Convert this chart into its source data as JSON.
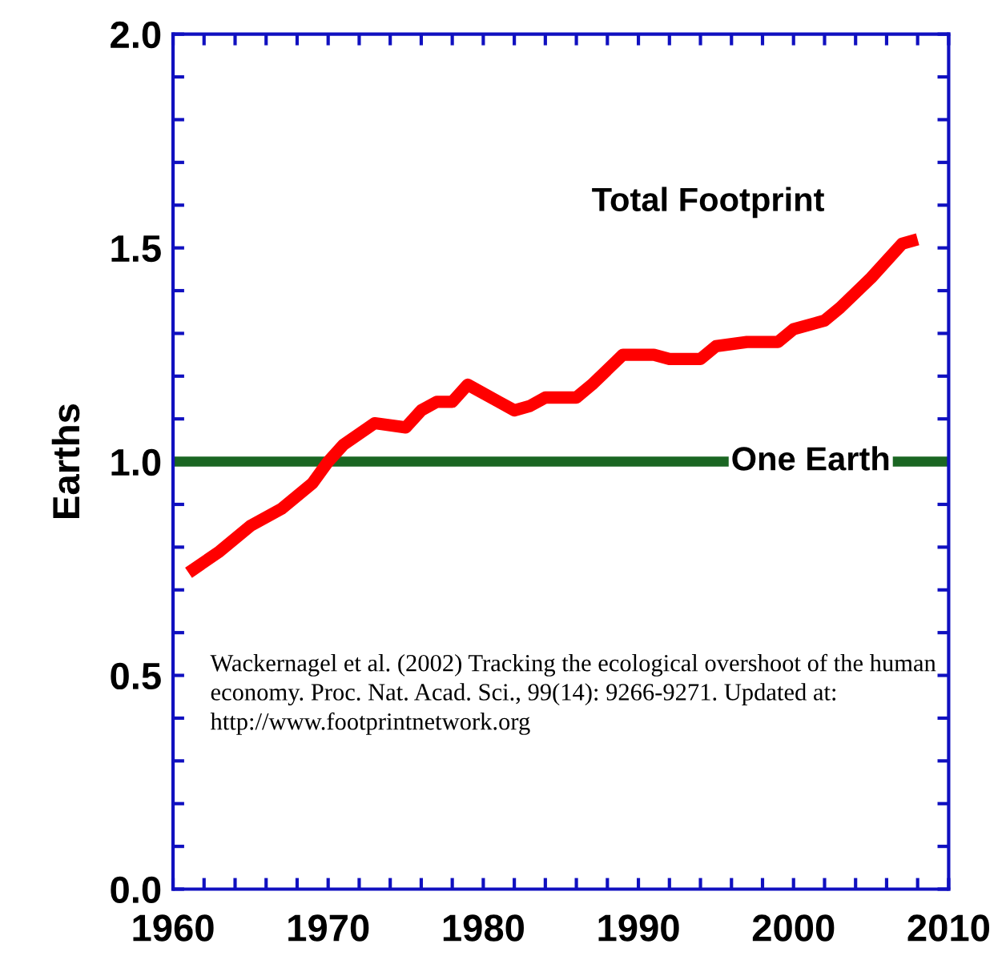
{
  "chart_data": {
    "type": "line",
    "ylabel": "Earths",
    "x": [
      1961,
      1963,
      1965,
      1967,
      1969,
      1970,
      1971,
      1973,
      1975,
      1976,
      1977,
      1978,
      1979,
      1981,
      1982,
      1983,
      1984,
      1986,
      1987,
      1989,
      1991,
      1992,
      1994,
      1995,
      1997,
      1998,
      1999,
      2000,
      2002,
      2003,
      2005,
      2007,
      2008
    ],
    "series": [
      {
        "name": "Total Footprint",
        "color": "#ff0000",
        "values": [
          0.74,
          0.79,
          0.85,
          0.89,
          0.95,
          1.0,
          1.04,
          1.09,
          1.08,
          1.12,
          1.14,
          1.14,
          1.18,
          1.14,
          1.12,
          1.13,
          1.15,
          1.15,
          1.18,
          1.25,
          1.25,
          1.24,
          1.24,
          1.27,
          1.28,
          1.28,
          1.28,
          1.31,
          1.33,
          1.36,
          1.43,
          1.51,
          1.52
        ]
      }
    ],
    "xlim": [
      1960,
      2010
    ],
    "xticks": [
      1960,
      {
        "value": 1962,
        "label": null
      },
      {
        "value": 1964,
        "label": null
      },
      {
        "value": 1966,
        "label": null
      },
      {
        "value": 1968,
        "label": null
      },
      1970,
      {
        "value": 1972,
        "label": null
      },
      {
        "value": 1974,
        "label": null
      },
      {
        "value": 1976,
        "label": null
      },
      {
        "value": 1978,
        "label": null
      },
      1980,
      {
        "value": 1982,
        "label": null
      },
      {
        "value": 1984,
        "label": null
      },
      {
        "value": 1986,
        "label": null
      },
      {
        "value": 1988,
        "label": null
      },
      1990,
      {
        "value": 1992,
        "label": null
      },
      {
        "value": 1994,
        "label": null
      },
      {
        "value": 1996,
        "label": null
      },
      {
        "value": 1998,
        "label": null
      },
      2000,
      {
        "value": 2002,
        "label": null
      },
      {
        "value": 2004,
        "label": null
      },
      {
        "value": 2006,
        "label": null
      },
      {
        "value": 2008,
        "label": null
      },
      2010
    ],
    "ylim": [
      0,
      2
    ],
    "yticks": [
      {
        "value": 0,
        "label": "0.0"
      },
      {
        "value": 0.1,
        "label": null
      },
      {
        "value": 0.2,
        "label": null
      },
      {
        "value": 0.3,
        "label": null
      },
      {
        "value": 0.4,
        "label": null
      },
      {
        "value": 0.5,
        "label": "0.5"
      },
      {
        "value": 0.6,
        "label": null
      },
      {
        "value": 0.7,
        "label": null
      },
      {
        "value": 0.8,
        "label": null
      },
      {
        "value": 0.9,
        "label": null
      },
      {
        "value": 1,
        "label": "1.0"
      },
      {
        "value": 1.1,
        "label": null
      },
      {
        "value": 1.2,
        "label": null
      },
      {
        "value": 1.3,
        "label": null
      },
      {
        "value": 1.4,
        "label": null
      },
      {
        "value": 1.5,
        "label": "1.5"
      },
      {
        "value": 1.6,
        "label": null
      },
      {
        "value": 1.7,
        "label": null
      },
      {
        "value": 1.8,
        "label": null
      },
      {
        "value": 1.9,
        "label": null
      },
      {
        "value": 2,
        "label": "2.0"
      }
    ],
    "ref_lines": [
      {
        "axis": "y",
        "value": 1,
        "label": "One Earth",
        "color": "#1a6622"
      }
    ],
    "annotations": [
      "Wackernagel et al. (2002) Tracking the ecological overshoot of the human economy. Proc. Nat. Acad. Sci., 99(14): 9266-9271. Updated at: http://www.footprintnetwork.org"
    ],
    "grid": false,
    "legend": false,
    "marker": "none",
    "line_style": "solid"
  }
}
